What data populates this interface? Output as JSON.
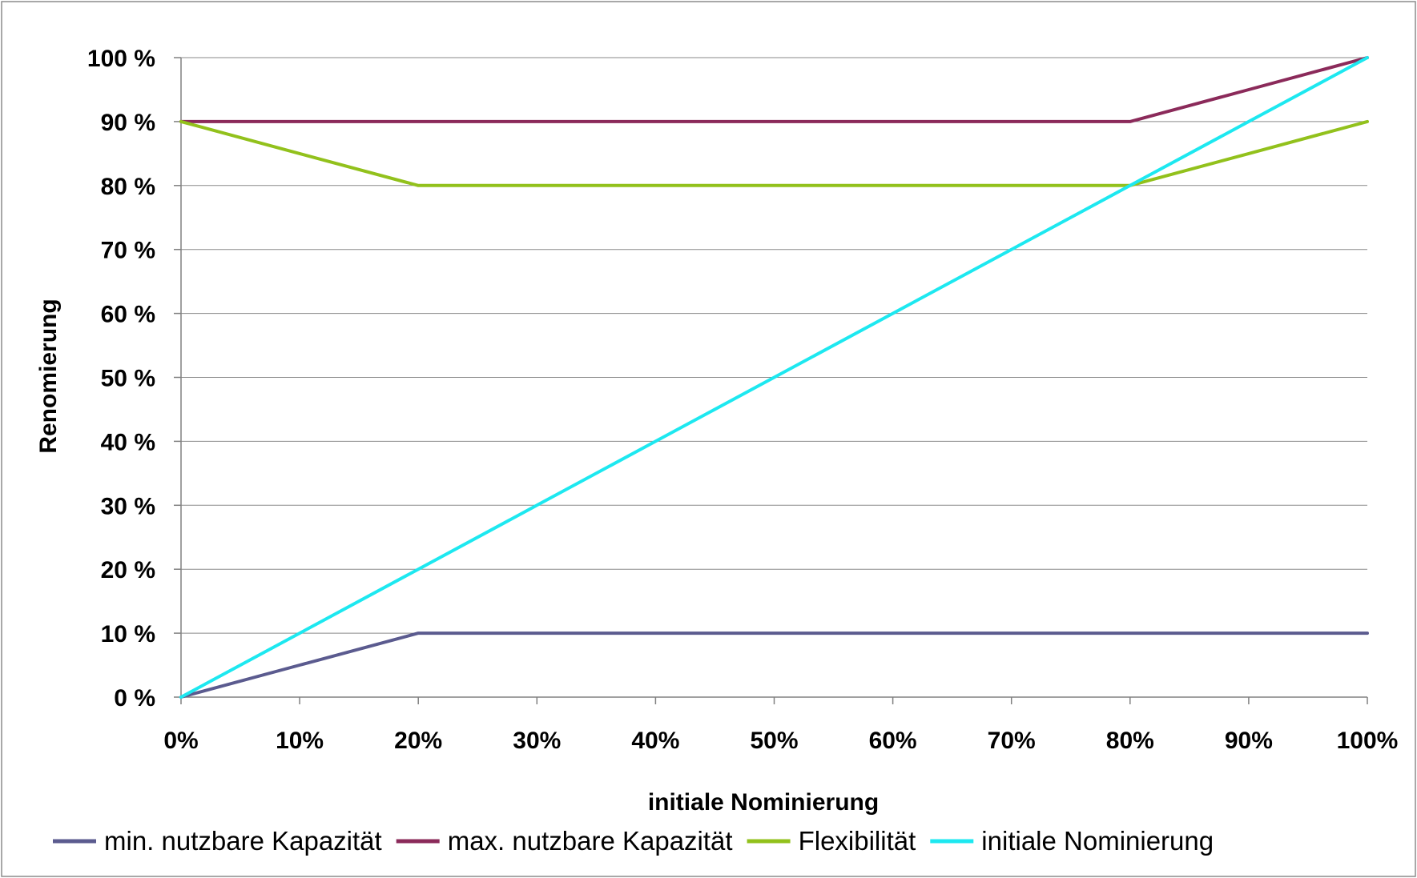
{
  "chart_data": {
    "type": "line",
    "title": "",
    "xlabel": "initiale Nominierung",
    "ylabel": "Renomierung",
    "x": [
      0,
      10,
      20,
      30,
      40,
      50,
      60,
      70,
      80,
      90,
      100
    ],
    "x_tick_labels": [
      "0%",
      "10%",
      "20%",
      "30%",
      "40%",
      "50%",
      "60%",
      "70%",
      "80%",
      "90%",
      "100%"
    ],
    "y_ticks": [
      0,
      10,
      20,
      30,
      40,
      50,
      60,
      70,
      80,
      90,
      100
    ],
    "y_tick_labels": [
      "0 %",
      "10 %",
      "20 %",
      "30 %",
      "40 %",
      "50 %",
      "60 %",
      "70 %",
      "80 %",
      "90 %",
      "100 %"
    ],
    "xlim": [
      0,
      100
    ],
    "ylim": [
      0,
      100
    ],
    "grid": "horizontal",
    "legend_position": "bottom",
    "series": [
      {
        "name": "min. nutzbare Kapazität",
        "color": "#5b5b8f",
        "values": [
          0,
          5,
          10,
          10,
          10,
          10,
          10,
          10,
          10,
          10,
          10
        ]
      },
      {
        "name": "max. nutzbare Kapazität",
        "color": "#8b2a5a",
        "values": [
          90,
          90,
          90,
          90,
          90,
          90,
          90,
          90,
          90,
          95,
          100
        ]
      },
      {
        "name": "Flexibilität",
        "color": "#92c11c",
        "values": [
          90,
          85,
          80,
          80,
          80,
          80,
          80,
          80,
          80,
          85,
          90
        ]
      },
      {
        "name": "initiale Nominierung",
        "color": "#1de8f0",
        "values": [
          0,
          10,
          20,
          30,
          40,
          50,
          60,
          70,
          80,
          90,
          100
        ]
      }
    ]
  }
}
